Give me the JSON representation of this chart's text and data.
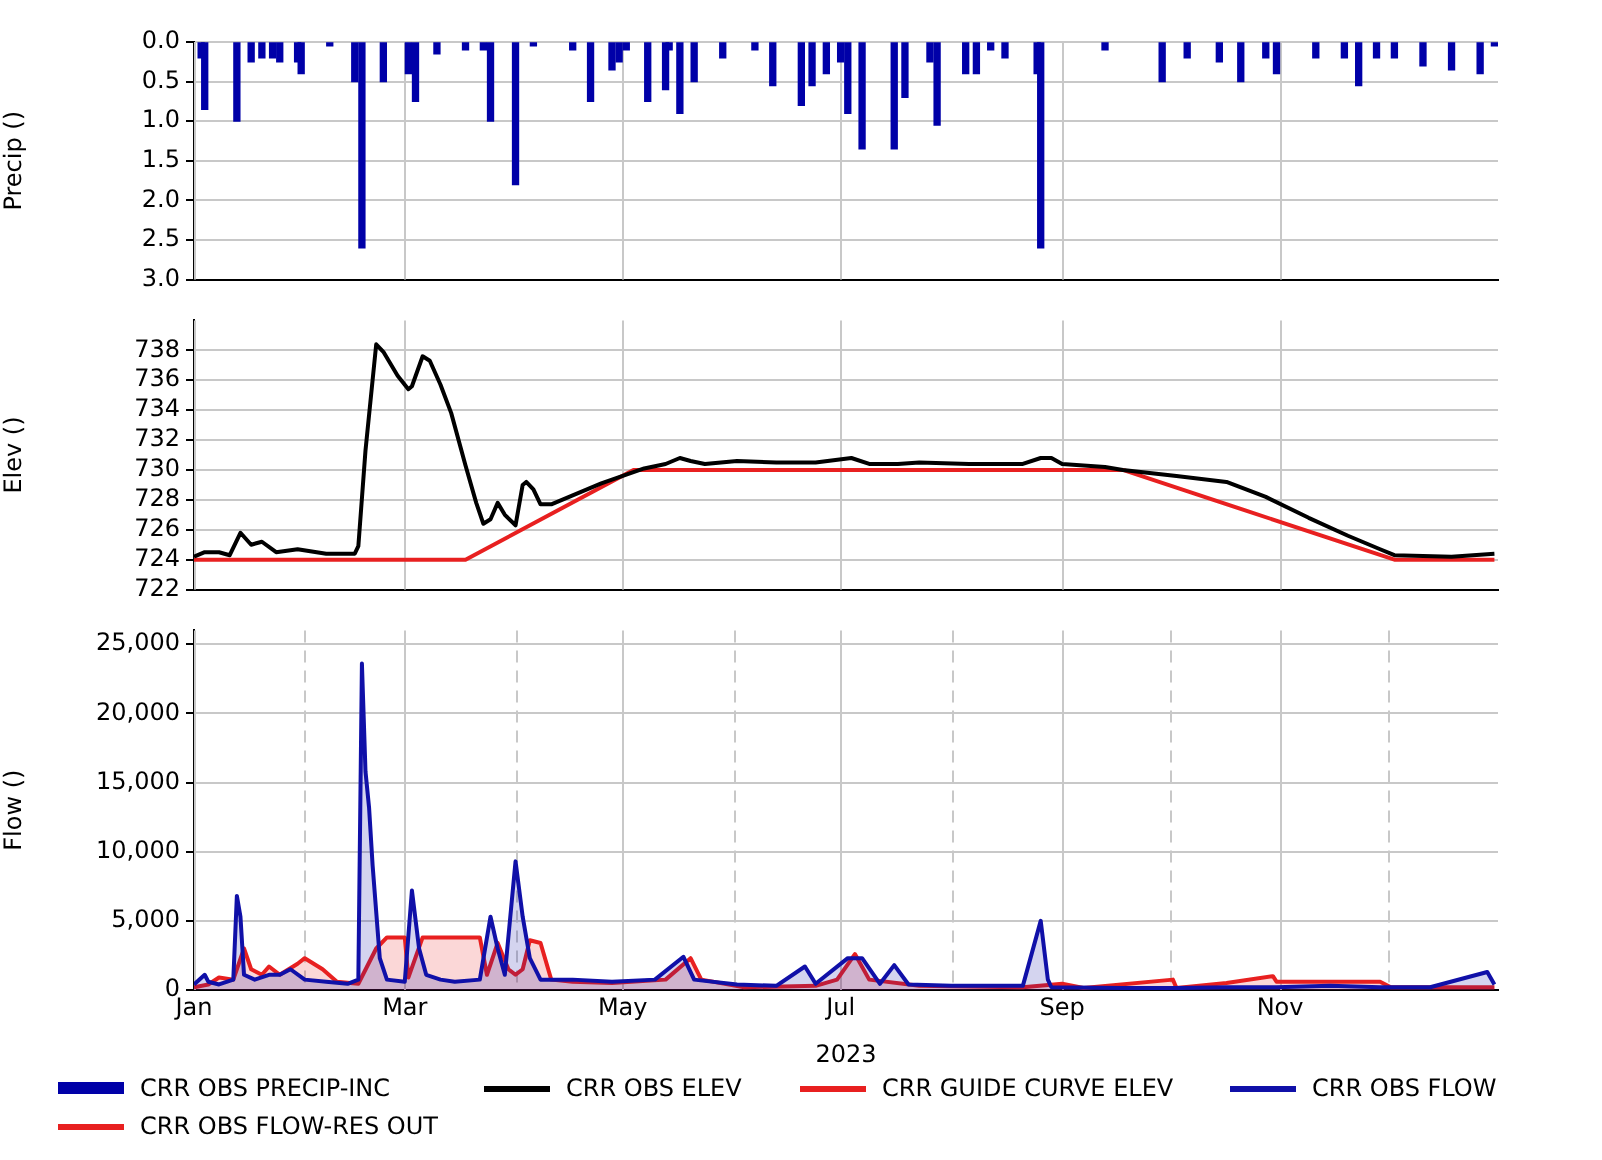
{
  "chart_data": [
    {
      "type": "bar",
      "ylabel": "Precip ()",
      "ylim": [
        3,
        0
      ],
      "xlim": [
        "2023-01-01",
        "2024-01-01"
      ],
      "grid": true,
      "legend": "bottom",
      "tick_labels": "y",
      "yticks": [
        {
          "value": 0,
          "label": "0.0"
        },
        {
          "value": 0.5,
          "label": "0.5"
        },
        {
          "value": 1,
          "label": "1.0"
        },
        {
          "value": 1.5,
          "label": "1.5"
        },
        {
          "value": 2,
          "label": "2.0"
        },
        {
          "value": 2.5,
          "label": "2.5"
        },
        {
          "value": 3,
          "label": "3.0"
        }
      ],
      "xticks": [
        "2023-01-01",
        "2023-03-01",
        "2023-05-01",
        "2023-07-01",
        "2023-09-01",
        "2023-11-01"
      ],
      "series": [
        {
          "name": "CRR OBS PRECIP-INC",
          "color": "#0000a8",
          "x": [
            "2023-01-03",
            "2023-01-04",
            "2023-01-13",
            "2023-01-17",
            "2023-01-20",
            "2023-01-23",
            "2023-01-25",
            "2023-01-30",
            "2023-01-31",
            "2023-02-08",
            "2023-02-15",
            "2023-02-17",
            "2023-02-23",
            "2023-03-02",
            "2023-03-04",
            "2023-03-10",
            "2023-03-18",
            "2023-03-23",
            "2023-03-25",
            "2023-04-01",
            "2023-04-06",
            "2023-04-17",
            "2023-04-22",
            "2023-04-28",
            "2023-04-30",
            "2023-05-02",
            "2023-05-08",
            "2023-05-13",
            "2023-05-14",
            "2023-05-17",
            "2023-05-21",
            "2023-05-29",
            "2023-06-07",
            "2023-06-12",
            "2023-06-20",
            "2023-06-23",
            "2023-06-27",
            "2023-07-01",
            "2023-07-03",
            "2023-07-07",
            "2023-07-16",
            "2023-07-19",
            "2023-07-26",
            "2023-07-28",
            "2023-08-05",
            "2023-08-08",
            "2023-08-12",
            "2023-08-16",
            "2023-08-25",
            "2023-08-26",
            "2023-09-13",
            "2023-09-29",
            "2023-10-06",
            "2023-10-15",
            "2023-10-21",
            "2023-10-28",
            "2023-10-31",
            "2023-11-11",
            "2023-11-19",
            "2023-11-23",
            "2023-11-28",
            "2023-12-03",
            "2023-12-11",
            "2023-12-19",
            "2023-12-27",
            "2023-12-31"
          ],
          "values": [
            0.2,
            0.85,
            1.0,
            0.25,
            0.2,
            0.2,
            0.25,
            0.25,
            0.4,
            0.05,
            0.5,
            2.6,
            0.5,
            0.4,
            0.75,
            0.15,
            0.1,
            0.1,
            1.0,
            1.8,
            0.05,
            0.1,
            0.75,
            0.35,
            0.25,
            0.1,
            0.75,
            0.6,
            0.1,
            0.9,
            0.5,
            0.2,
            0.1,
            0.55,
            0.8,
            0.55,
            0.4,
            0.25,
            0.9,
            1.35,
            1.35,
            0.7,
            0.25,
            1.05,
            0.4,
            0.4,
            0.1,
            0.2,
            0.4,
            2.6,
            0.1,
            0.5,
            0.2,
            0.25,
            0.5,
            0.2,
            0.4,
            0.2,
            0.2,
            0.55,
            0.2,
            0.2,
            0.3,
            0.35,
            0.4,
            0.05
          ]
        }
      ]
    },
    {
      "type": "line",
      "ylabel": "Elev ()",
      "ylim": [
        722,
        740
      ],
      "xlim": [
        "2023-01-01",
        "2024-01-01"
      ],
      "grid": true,
      "legend": "bottom",
      "tick_labels": "y",
      "yticks": [
        722,
        724,
        726,
        728,
        730,
        732,
        734,
        736,
        738
      ],
      "xticks": [
        "2023-01-01",
        "2023-03-01",
        "2023-05-01",
        "2023-07-01",
        "2023-09-01",
        "2023-11-01"
      ],
      "series": [
        {
          "name": "CRR OBS ELEV",
          "color": "#000000",
          "x": [
            "2023-01-01",
            "2023-01-04",
            "2023-01-08",
            "2023-01-11",
            "2023-01-14",
            "2023-01-17",
            "2023-01-20",
            "2023-01-24",
            "2023-01-30",
            "2023-02-07",
            "2023-02-15",
            "2023-02-16",
            "2023-02-18",
            "2023-02-21",
            "2023-02-23",
            "2023-02-27",
            "2023-03-02",
            "2023-03-03",
            "2023-03-06",
            "2023-03-08",
            "2023-03-11",
            "2023-03-14",
            "2023-03-18",
            "2023-03-21",
            "2023-03-23",
            "2023-03-25",
            "2023-03-27",
            "2023-03-29",
            "2023-04-01",
            "2023-04-03",
            "2023-04-04",
            "2023-04-06",
            "2023-04-08",
            "2023-04-11",
            "2023-04-17",
            "2023-04-25",
            "2023-05-01",
            "2023-05-07",
            "2023-05-13",
            "2023-05-17",
            "2023-05-20",
            "2023-05-24",
            "2023-06-02",
            "2023-06-13",
            "2023-06-24",
            "2023-07-04",
            "2023-07-09",
            "2023-07-17",
            "2023-07-23",
            "2023-08-06",
            "2023-08-21",
            "2023-08-26",
            "2023-08-29",
            "2023-09-01",
            "2023-09-13",
            "2023-09-18",
            "2023-10-03",
            "2023-10-17",
            "2023-10-28",
            "2023-11-09",
            "2023-11-20",
            "2023-11-29",
            "2023-12-03",
            "2023-12-19",
            "2023-12-31"
          ],
          "values": [
            724.2,
            724.5,
            724.5,
            724.3,
            725.8,
            725.0,
            725.2,
            724.5,
            724.7,
            724.4,
            724.4,
            724.9,
            731.3,
            738.4,
            737.9,
            736.3,
            735.4,
            735.6,
            737.6,
            737.3,
            735.7,
            733.8,
            730.3,
            727.8,
            726.4,
            726.7,
            727.8,
            727.0,
            726.3,
            729.0,
            729.2,
            728.7,
            727.7,
            727.7,
            728.3,
            729.1,
            729.6,
            730.1,
            730.4,
            730.8,
            730.6,
            730.4,
            730.6,
            730.5,
            730.5,
            730.8,
            730.4,
            730.4,
            730.5,
            730.4,
            730.4,
            730.8,
            730.8,
            730.4,
            730.2,
            730.0,
            729.6,
            729.2,
            728.2,
            726.8,
            725.6,
            724.7,
            724.3,
            724.2,
            724.4
          ]
        },
        {
          "name": "CRR GUIDE CURVE ELEV",
          "color": "#e82020",
          "x": [
            "2023-01-01",
            "2023-03-18",
            "2023-05-04",
            "2023-09-18",
            "2023-12-03",
            "2023-12-31"
          ],
          "values": [
            724,
            724,
            730,
            730,
            724,
            724
          ]
        }
      ]
    },
    {
      "type": "area",
      "ylabel": "Flow ()",
      "xlabel": "2023",
      "ylim": [
        0,
        26000
      ],
      "xlim": [
        "2023-01-01",
        "2024-01-01"
      ],
      "grid": true,
      "legend": "bottom",
      "yticks": [
        0,
        {
          "value": 5000,
          "label": "5,000"
        },
        {
          "value": 10000,
          "label": "10,000"
        },
        {
          "value": 15000,
          "label": "15,000"
        },
        {
          "value": 20000,
          "label": "20,000"
        },
        {
          "value": 25000,
          "label": "25,000"
        }
      ],
      "xticks": [
        {
          "value": "2023-01-01",
          "label": "Jan"
        },
        {
          "value": "2023-02-01",
          "label": null
        },
        {
          "value": "2023-03-01",
          "label": "Mar"
        },
        {
          "value": "2023-04-01",
          "label": null
        },
        {
          "value": "2023-05-01",
          "label": "May"
        },
        {
          "value": "2023-06-01",
          "label": null
        },
        {
          "value": "2023-07-01",
          "label": "Jul"
        },
        {
          "value": "2023-08-01",
          "label": null
        },
        {
          "value": "2023-09-01",
          "label": "Sep"
        },
        {
          "value": "2023-10-01",
          "label": null
        },
        {
          "value": "2023-11-01",
          "label": "Nov"
        },
        {
          "value": "2023-12-01",
          "label": null
        }
      ],
      "series": [
        {
          "name": "CRR OBS FLOW",
          "color": "#1010a8",
          "x": [
            "2023-01-01",
            "2023-01-04",
            "2023-01-05",
            "2023-01-08",
            "2023-01-12",
            "2023-01-13",
            "2023-01-14",
            "2023-01-15",
            "2023-01-18",
            "2023-01-22",
            "2023-01-25",
            "2023-01-28",
            "2023-02-01",
            "2023-02-07",
            "2023-02-13",
            "2023-02-16",
            "2023-02-17",
            "2023-02-18",
            "2023-02-19",
            "2023-02-20",
            "2023-02-22",
            "2023-02-24",
            "2023-03-01",
            "2023-03-03",
            "2023-03-05",
            "2023-03-07",
            "2023-03-11",
            "2023-03-15",
            "2023-03-22",
            "2023-03-25",
            "2023-03-27",
            "2023-03-29",
            "2023-04-01",
            "2023-04-03",
            "2023-04-05",
            "2023-04-08",
            "2023-04-17",
            "2023-04-28",
            "2023-05-10",
            "2023-05-18",
            "2023-05-21",
            "2023-06-02",
            "2023-06-13",
            "2023-06-21",
            "2023-06-24",
            "2023-07-03",
            "2023-07-07",
            "2023-07-12",
            "2023-07-16",
            "2023-07-20",
            "2023-08-01",
            "2023-08-09",
            "2023-08-21",
            "2023-08-26",
            "2023-08-28",
            "2023-08-29",
            "2023-09-18",
            "2023-10-03",
            "2023-10-17",
            "2023-10-31",
            "2023-11-15",
            "2023-11-29",
            "2023-12-13",
            "2023-12-29",
            "2023-12-31"
          ],
          "values": [
            400,
            1100,
            600,
            400,
            750,
            6800,
            5300,
            1100,
            750,
            1100,
            1100,
            1500,
            750,
            600,
            450,
            750,
            23600,
            15800,
            13200,
            9000,
            2300,
            750,
            600,
            7200,
            3000,
            1100,
            750,
            600,
            750,
            5300,
            3000,
            1100,
            9300,
            5300,
            2300,
            750,
            750,
            600,
            750,
            2400,
            750,
            400,
            300,
            1700,
            450,
            2300,
            2300,
            450,
            1800,
            400,
            300,
            300,
            300,
            5000,
            750,
            200,
            150,
            150,
            200,
            200,
            300,
            200,
            200,
            1300,
            400
          ]
        },
        {
          "name": "CRR OBS FLOW-RES OUT",
          "color": "#e82020",
          "x": [
            "2023-01-01",
            "2023-01-05",
            "2023-01-08",
            "2023-01-12",
            "2023-01-15",
            "2023-01-17",
            "2023-01-20",
            "2023-01-22",
            "2023-01-25",
            "2023-01-30",
            "2023-02-01",
            "2023-02-06",
            "2023-02-10",
            "2023-02-16",
            "2023-02-21",
            "2023-02-24",
            "2023-03-01",
            "2023-03-02",
            "2023-03-06",
            "2023-03-22",
            "2023-03-24",
            "2023-03-27",
            "2023-03-30",
            "2023-04-01",
            "2023-04-03",
            "2023-04-05",
            "2023-04-08",
            "2023-04-11",
            "2023-04-17",
            "2023-04-28",
            "2023-05-13",
            "2023-05-20",
            "2023-05-23",
            "2023-06-04",
            "2023-06-24",
            "2023-06-30",
            "2023-07-05",
            "2023-07-09",
            "2023-07-23",
            "2023-08-21",
            "2023-09-01",
            "2023-09-07",
            "2023-10-02",
            "2023-10-03",
            "2023-10-17",
            "2023-10-30",
            "2023-10-31",
            "2023-11-29",
            "2023-12-02",
            "2023-12-31"
          ],
          "values": [
            200,
            400,
            900,
            750,
            3000,
            1500,
            1100,
            1700,
            1100,
            1900,
            2300,
            1500,
            600,
            450,
            3000,
            3800,
            3800,
            900,
            3800,
            3800,
            1100,
            3400,
            1500,
            1100,
            1500,
            3600,
            3400,
            750,
            600,
            500,
            750,
            2300,
            750,
            200,
            300,
            750,
            2600,
            750,
            300,
            200,
            450,
            150,
            750,
            150,
            500,
            1000,
            600,
            600,
            200,
            200
          ]
        }
      ]
    }
  ]
}
